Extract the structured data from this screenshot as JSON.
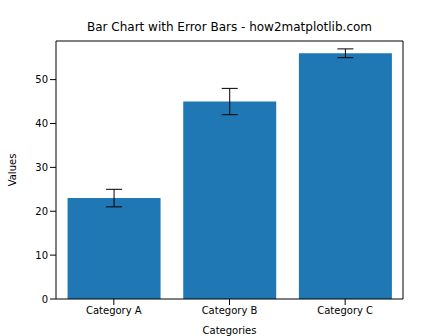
{
  "chart_data": {
    "type": "bar",
    "title": "Bar Chart with Error Bars - how2matplotlib.com",
    "x_label": "Categories",
    "y_label": "Values",
    "categories": [
      "Category A",
      "Category B",
      "Category C"
    ],
    "values": [
      23,
      45,
      56
    ],
    "errors": [
      2,
      3,
      1
    ],
    "color": "#1f77b4",
    "ylim": [
      0,
      58.8
    ],
    "yticks": [
      0,
      10,
      20,
      30,
      40,
      50
    ],
    "grid": false
  }
}
